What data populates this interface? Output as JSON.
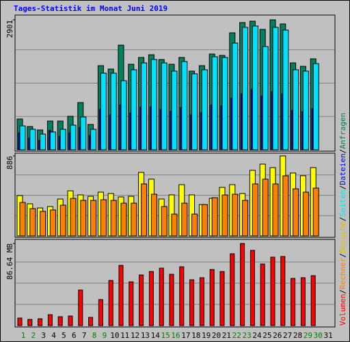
{
  "chart_data": {
    "type": "bar",
    "title": "Tages-Statistik im Monat Juni 2019",
    "categories": [
      "1",
      "2",
      "3",
      "4",
      "5",
      "6",
      "7",
      "8",
      "9",
      "10",
      "11",
      "12",
      "13",
      "14",
      "15",
      "16",
      "17",
      "18",
      "19",
      "20",
      "21",
      "22",
      "23",
      "24",
      "25",
      "26",
      "27",
      "28",
      "29",
      "30",
      "31"
    ],
    "category_colors": [
      "#008000",
      "#008000",
      "#000000",
      "#000000",
      "#000000",
      "#000000",
      "#000000",
      "#008000",
      "#008000",
      "#000000",
      "#000000",
      "#000000",
      "#000000",
      "#000000",
      "#008000",
      "#008000",
      "#000000",
      "#000000",
      "#000000",
      "#000000",
      "#000000",
      "#008000",
      "#008000",
      "#000000",
      "#000000",
      "#000000",
      "#000000",
      "#000000",
      "#008000",
      "#008000",
      "#000000"
    ],
    "legend_separator": "/",
    "panels": [
      {
        "ylim": [
          0,
          2977
        ],
        "yticks": [
          2901
        ],
        "series": [
          {
            "name": "Anfragen",
            "color": "#00805c",
            "values": [
              687,
              519,
              443,
              641,
              641,
              748,
              1054,
              565,
              1878,
              1802,
              2336,
              1909,
              2061,
              2122,
              2015,
              1909,
              2061,
              1756,
              1878,
              2138,
              2107,
              2611,
              2840,
              2870,
              2687,
              2901,
              2809,
              1939,
              1863,
              2031,
              null
            ]
          },
          {
            "name": "Dateien",
            "color": "#0000ff",
            "values": [
              380,
              260,
              210,
              430,
              300,
              380,
              500,
              320,
              900,
              780,
              1000,
              820,
              950,
              960,
              900,
              860,
              940,
              780,
              830,
              1000,
              980,
              1150,
              1250,
              1350,
              1200,
              1300,
              1250,
              880,
              850,
              920,
              null
            ]
          },
          {
            "name": "Seiten",
            "color": "#00e0ff",
            "values": [
              534,
              458,
              351,
              397,
              458,
              550,
              733,
              458,
              1710,
              1710,
              1542,
              1786,
              1939,
              2015,
              1939,
              1756,
              1970,
              1695,
              1786,
              2077,
              2061,
              2382,
              2733,
              2763,
              2305,
              2733,
              2672,
              1786,
              1756,
              1924,
              null
            ]
          }
        ]
      },
      {
        "ylim": [
          0,
          901
        ],
        "yticks": [
          886
        ],
        "series": [
          {
            "name": "Besuche",
            "color": "#ffff00",
            "values": [
              447,
              356,
              310,
              326,
              409,
              500,
              455,
              439,
              485,
              470,
              432,
              439,
              704,
              629,
              409,
              455,
              568,
              455,
              348,
              417,
              538,
              568,
              470,
              727,
              795,
              757,
              886,
              697,
              667,
              757,
              null
            ]
          },
          {
            "name": "Rechner",
            "color": "#ff8000",
            "values": [
              371,
              303,
              273,
              288,
              341,
              416,
              394,
              394,
              401,
              394,
              363,
              363,
              576,
              462,
              326,
              242,
              363,
              242,
              348,
              424,
              454,
              462,
              394,
              576,
              629,
              576,
              666,
              522,
              485,
              530,
              null
            ]
          }
        ]
      },
      {
        "ylim": [
          0,
          89.53
        ],
        "yticks": [
          {
            "value": 86.64,
            "label": "86.64 MB"
          }
        ],
        "series": [
          {
            "name": "Volumen",
            "color": "#ff0000",
            "values": [
              7.94,
              6.5,
              7.22,
              11.55,
              9.39,
              10.11,
              37.54,
              8.66,
              27.44,
              47.66,
              63.54,
              46.21,
              53.43,
              57.04,
              60.65,
              54.15,
              62.09,
              48.37,
              50.54,
              59.21,
              57.04,
              75.81,
              86.64,
              79.42,
              64.98,
              72.2,
              72.92,
              49.82,
              50.54,
              52.71,
              null
            ]
          }
        ]
      }
    ]
  }
}
